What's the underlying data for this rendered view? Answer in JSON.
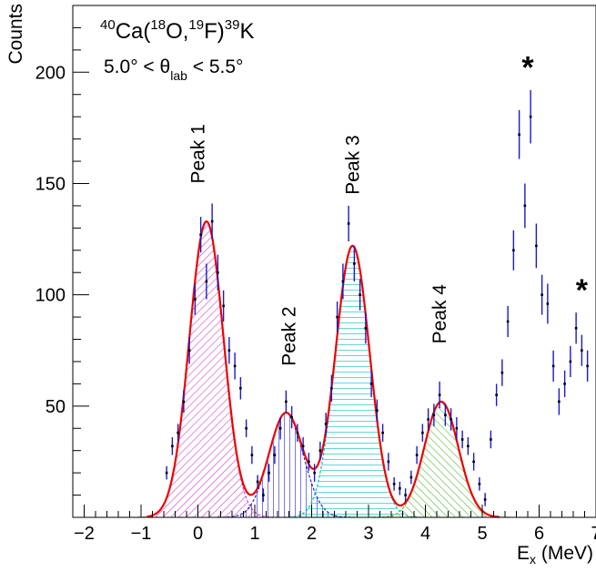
{
  "chart_data": {
    "type": "histogram-fit",
    "title_parts": {
      "mass_a": "40",
      "elem_a": "Ca",
      "open": "(",
      "mass_b": "18",
      "elem_b": "O",
      "comma": ",",
      "mass_c": "19",
      "elem_c": "F",
      "close": ")",
      "mass_d": "39",
      "elem_d": "K"
    },
    "angle_cut": {
      "left": "5.0° < θ",
      "sub": "lab",
      "right": " < 5.5°"
    },
    "xlabel": {
      "main": "E",
      "sub": "x",
      "unit": " (MeV)"
    },
    "ylabel": "Counts",
    "xlim": [
      -2.2,
      7.0
    ],
    "ylim": [
      0,
      230
    ],
    "xticks": [
      "−2",
      "−1",
      "0",
      "1",
      "2",
      "3",
      "4",
      "5",
      "6",
      "7"
    ],
    "yticks": [
      "50",
      "100",
      "150",
      "200"
    ],
    "peaks": [
      {
        "name": "Peak 1",
        "center": 0.15,
        "sigma": 0.3,
        "amplitude": 133,
        "label_x": 0.0,
        "label_y": 150,
        "color": "#cc44cc"
      },
      {
        "name": "Peak 2",
        "center": 1.55,
        "sigma": 0.3,
        "amplitude": 47,
        "label_x": 1.6,
        "label_y": 68,
        "color": "#2222cc"
      },
      {
        "name": "Peak 3",
        "center": 2.72,
        "sigma": 0.3,
        "amplitude": 122,
        "label_x": 2.72,
        "label_y": 145,
        "color": "#00bbbb"
      },
      {
        "name": "Peak 4",
        "center": 4.28,
        "sigma": 0.3,
        "amplitude": 52,
        "label_x": 4.25,
        "label_y": 78,
        "color": "#55bb33"
      }
    ],
    "total_fit_color": "#ee0000",
    "data_points": [
      [
        -0.55,
        20,
        3
      ],
      [
        -0.45,
        32,
        4
      ],
      [
        -0.35,
        38,
        4
      ],
      [
        -0.25,
        52,
        5
      ],
      [
        -0.15,
        75,
        6
      ],
      [
        -0.05,
        98,
        7
      ],
      [
        0.05,
        127,
        8
      ],
      [
        0.15,
        106,
        8
      ],
      [
        0.25,
        133,
        8
      ],
      [
        0.35,
        110,
        8
      ],
      [
        0.45,
        95,
        7
      ],
      [
        0.55,
        75,
        6
      ],
      [
        0.65,
        68,
        6
      ],
      [
        0.75,
        58,
        5
      ],
      [
        0.85,
        40,
        4
      ],
      [
        0.95,
        28,
        4
      ],
      [
        1.05,
        16,
        3
      ],
      [
        1.15,
        10,
        3
      ],
      [
        1.25,
        20,
        4
      ],
      [
        1.35,
        28,
        4
      ],
      [
        1.45,
        40,
        5
      ],
      [
        1.55,
        52,
        5
      ],
      [
        1.65,
        45,
        5
      ],
      [
        1.75,
        38,
        4
      ],
      [
        1.85,
        32,
        4
      ],
      [
        1.95,
        25,
        4
      ],
      [
        2.05,
        20,
        4
      ],
      [
        2.15,
        30,
        4
      ],
      [
        2.25,
        42,
        5
      ],
      [
        2.35,
        58,
        6
      ],
      [
        2.45,
        90,
        7
      ],
      [
        2.55,
        106,
        8
      ],
      [
        2.65,
        132,
        8
      ],
      [
        2.75,
        114,
        8
      ],
      [
        2.85,
        100,
        7
      ],
      [
        2.95,
        85,
        7
      ],
      [
        3.05,
        60,
        6
      ],
      [
        3.15,
        48,
        5
      ],
      [
        3.25,
        38,
        4
      ],
      [
        3.35,
        25,
        4
      ],
      [
        3.45,
        15,
        3
      ],
      [
        3.55,
        13,
        3
      ],
      [
        3.65,
        10,
        3
      ],
      [
        3.75,
        18,
        3
      ],
      [
        3.85,
        28,
        4
      ],
      [
        3.95,
        38,
        4
      ],
      [
        4.05,
        44,
        5
      ],
      [
        4.15,
        46,
        5
      ],
      [
        4.25,
        55,
        6
      ],
      [
        4.35,
        46,
        5
      ],
      [
        4.45,
        44,
        5
      ],
      [
        4.55,
        40,
        5
      ],
      [
        4.65,
        35,
        4
      ],
      [
        4.75,
        32,
        4
      ],
      [
        4.85,
        25,
        4
      ],
      [
        4.95,
        15,
        3
      ],
      [
        5.05,
        8,
        3
      ],
      [
        5.15,
        35,
        4
      ],
      [
        5.25,
        55,
        5
      ],
      [
        5.35,
        65,
        6
      ],
      [
        5.45,
        88,
        7
      ],
      [
        5.55,
        120,
        9
      ],
      [
        5.65,
        172,
        11
      ],
      [
        5.75,
        140,
        10
      ],
      [
        5.85,
        180,
        12
      ],
      [
        5.95,
        122,
        10
      ],
      [
        6.05,
        100,
        9
      ],
      [
        6.15,
        96,
        9
      ],
      [
        6.25,
        68,
        7
      ],
      [
        6.35,
        52,
        6
      ],
      [
        6.45,
        60,
        6
      ],
      [
        6.55,
        70,
        7
      ],
      [
        6.65,
        85,
        7
      ],
      [
        6.75,
        75,
        7
      ],
      [
        6.85,
        68,
        7
      ]
    ],
    "stars": [
      {
        "symbol": "*",
        "x": 5.8,
        "y": 204
      },
      {
        "symbol": "*",
        "x": 6.75,
        "y": 104
      }
    ]
  }
}
